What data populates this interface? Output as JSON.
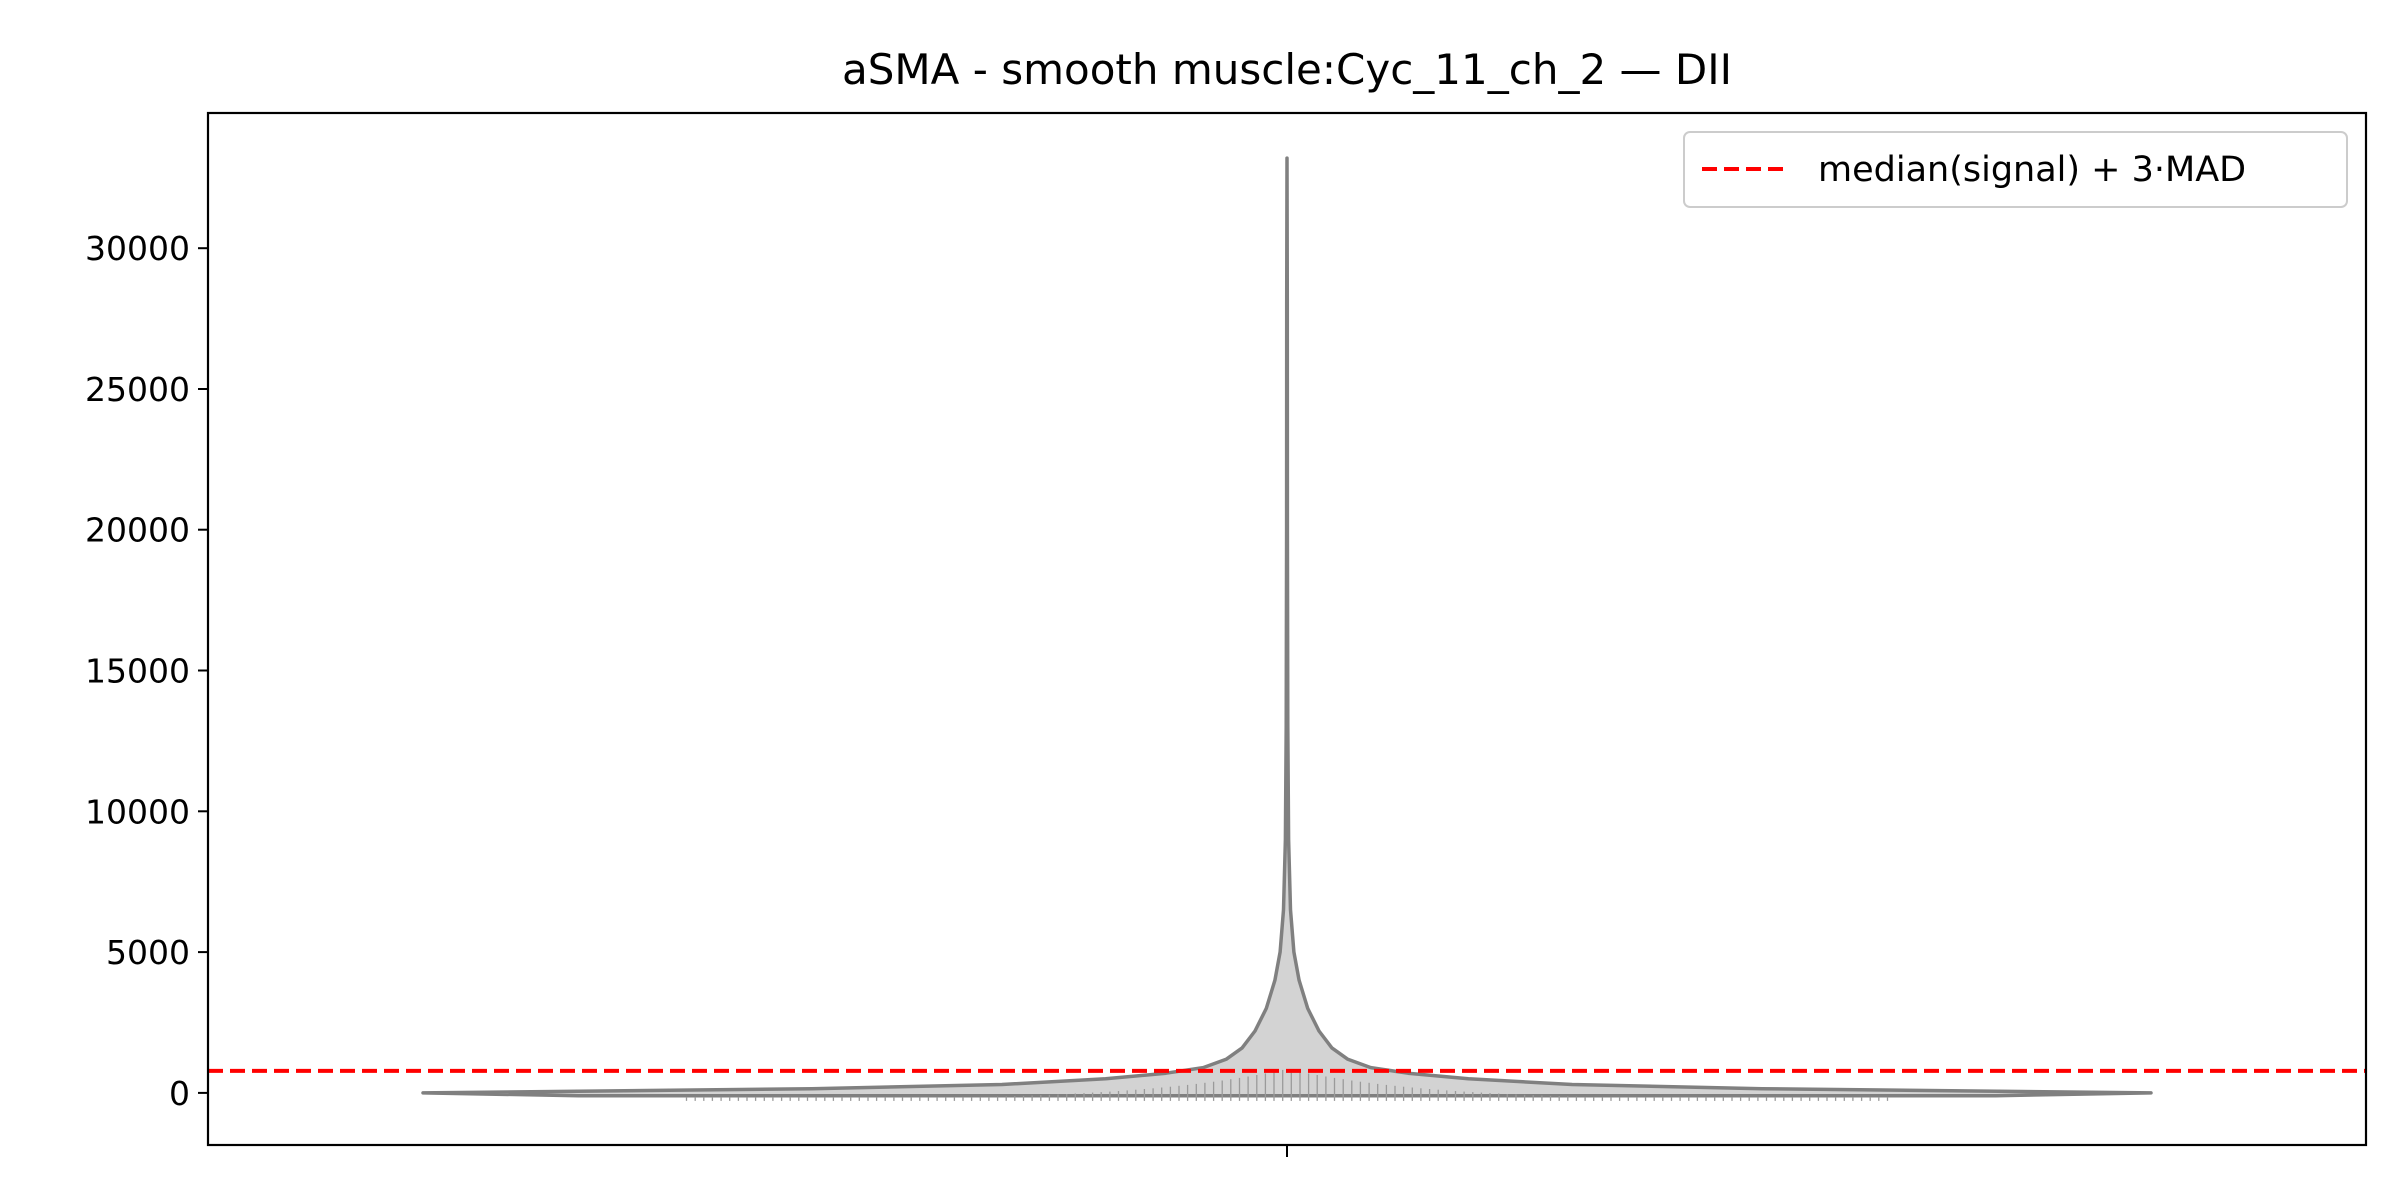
{
  "chart_data": {
    "type": "violin",
    "title": "aSMA - smooth muscle:Cyc_11_ch_2 — DII",
    "xlabel": "",
    "ylabel": "",
    "ylim": [
      -1850,
      34800
    ],
    "yticks": [
      0,
      5000,
      10000,
      15000,
      20000,
      25000,
      30000
    ],
    "xticks": [
      ""
    ],
    "grid": false,
    "legend": {
      "placement": "upper right",
      "entries": [
        "median(signal) + 3·MAD"
      ]
    },
    "threshold": {
      "label": "median(signal) + 3·MAD",
      "value": 780,
      "color": "#ff0000",
      "style": "dashed"
    },
    "violin": {
      "min": -100,
      "max": 33200,
      "fill_color": "#d3d3d3",
      "edge_color": "#808080",
      "density_profile": [
        {
          "value": -100,
          "width_fraction": 0.82
        },
        {
          "value": 0,
          "width_fraction": 1.0
        },
        {
          "value": 150,
          "width_fraction": 0.55
        },
        {
          "value": 300,
          "width_fraction": 0.33
        },
        {
          "value": 500,
          "width_fraction": 0.21
        },
        {
          "value": 700,
          "width_fraction": 0.14
        },
        {
          "value": 900,
          "width_fraction": 0.097
        },
        {
          "value": 1200,
          "width_fraction": 0.07
        },
        {
          "value": 1600,
          "width_fraction": 0.052
        },
        {
          "value": 2200,
          "width_fraction": 0.037
        },
        {
          "value": 3000,
          "width_fraction": 0.024
        },
        {
          "value": 4000,
          "width_fraction": 0.014
        },
        {
          "value": 5000,
          "width_fraction": 0.008
        },
        {
          "value": 6500,
          "width_fraction": 0.004
        },
        {
          "value": 9000,
          "width_fraction": 0.0018
        },
        {
          "value": 13000,
          "width_fraction": 0.0009
        },
        {
          "value": 20000,
          "width_fraction": 0.0005
        },
        {
          "value": 28000,
          "width_fraction": 0.0003
        },
        {
          "value": 33200,
          "width_fraction": 0
        }
      ]
    }
  }
}
